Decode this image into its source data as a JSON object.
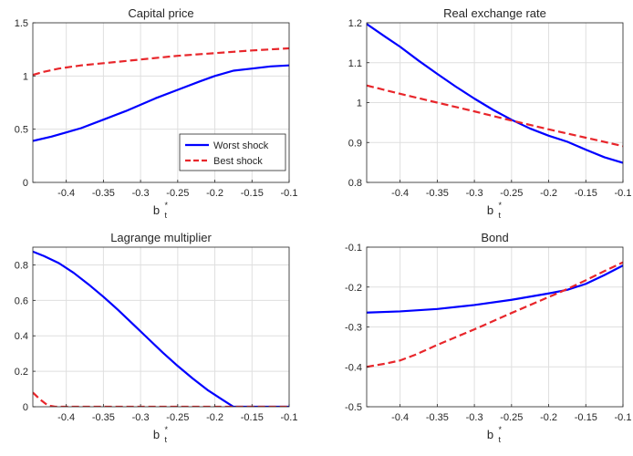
{
  "colors": {
    "worst": "#0000ff",
    "best": "#e8262b",
    "axis": "#262626",
    "grid": "#dfdfdf"
  },
  "legend": {
    "worst_label": "Worst shock",
    "best_label": "Best shock",
    "placement": "bottom-right (Capital price panel)"
  },
  "chart_data": [
    {
      "type": "line",
      "title": "Capital price",
      "xlabel": "b*t",
      "xlabel_base": "b",
      "xlabel_sup": "*",
      "xlabel_sub": "t",
      "xlim": [
        -0.445,
        -0.1
      ],
      "ylim": [
        0,
        1.5
      ],
      "grid": true,
      "xticks": [
        -0.4,
        -0.35,
        -0.3,
        -0.25,
        -0.2,
        -0.15,
        -0.1
      ],
      "xtick_labels": [
        "-0.4",
        "-0.35",
        "-0.3",
        "-0.25",
        "-0.2",
        "-0.15",
        "-0.1"
      ],
      "yticks": [
        0,
        0.5,
        1,
        1.5
      ],
      "ytick_labels": [
        "0",
        "0.5",
        "1",
        "1.5"
      ],
      "series": [
        {
          "name": "Worst shock",
          "style": "solid",
          "x": [
            -0.445,
            -0.42,
            -0.4,
            -0.38,
            -0.35,
            -0.32,
            -0.3,
            -0.28,
            -0.25,
            -0.22,
            -0.2,
            -0.175,
            -0.15,
            -0.125,
            -0.1
          ],
          "y": [
            0.39,
            0.43,
            0.47,
            0.51,
            0.59,
            0.67,
            0.73,
            0.79,
            0.87,
            0.95,
            1.0,
            1.05,
            1.07,
            1.09,
            1.1
          ]
        },
        {
          "name": "Best shock",
          "style": "dashed",
          "x": [
            -0.445,
            -0.43,
            -0.41,
            -0.4,
            -0.38,
            -0.35,
            -0.3,
            -0.25,
            -0.2,
            -0.15,
            -0.1
          ],
          "y": [
            1.01,
            1.04,
            1.07,
            1.08,
            1.1,
            1.12,
            1.155,
            1.19,
            1.215,
            1.24,
            1.26
          ]
        }
      ]
    },
    {
      "type": "line",
      "title": "Real exchange rate",
      "xlabel": "b*t",
      "xlabel_base": "b",
      "xlabel_sup": "*",
      "xlabel_sub": "t",
      "xlim": [
        -0.445,
        -0.1
      ],
      "ylim": [
        0.8,
        1.2
      ],
      "grid": true,
      "xticks": [
        -0.4,
        -0.35,
        -0.3,
        -0.25,
        -0.2,
        -0.15,
        -0.1
      ],
      "xtick_labels": [
        "-0.4",
        "-0.35",
        "-0.3",
        "-0.25",
        "-0.2",
        "-0.15",
        "-0.1"
      ],
      "yticks": [
        0.8,
        0.9,
        1.0,
        1.1,
        1.2
      ],
      "ytick_labels": [
        "0.8",
        "0.9",
        "1",
        "1.1",
        "1.2"
      ],
      "series": [
        {
          "name": "Worst shock",
          "style": "solid",
          "x": [
            -0.445,
            -0.42,
            -0.4,
            -0.375,
            -0.35,
            -0.325,
            -0.3,
            -0.275,
            -0.25,
            -0.225,
            -0.2,
            -0.175,
            -0.15,
            -0.125,
            -0.1
          ],
          "y": [
            1.197,
            1.165,
            1.14,
            1.105,
            1.072,
            1.04,
            1.01,
            0.982,
            0.957,
            0.935,
            0.917,
            0.902,
            0.882,
            0.863,
            0.849
          ]
        },
        {
          "name": "Best shock",
          "style": "dashed",
          "x": [
            -0.445,
            -0.4,
            -0.35,
            -0.3,
            -0.25,
            -0.2,
            -0.15,
            -0.1
          ],
          "y": [
            1.043,
            1.022,
            1.0,
            0.978,
            0.955,
            0.933,
            0.912,
            0.891
          ]
        }
      ]
    },
    {
      "type": "line",
      "title": "Lagrange multiplier",
      "xlabel": "b*t",
      "xlabel_base": "b",
      "xlabel_sup": "*",
      "xlabel_sub": "t",
      "xlim": [
        -0.445,
        -0.1
      ],
      "ylim": [
        0,
        0.9
      ],
      "grid": true,
      "xticks": [
        -0.4,
        -0.35,
        -0.3,
        -0.25,
        -0.2,
        -0.15,
        -0.1
      ],
      "xtick_labels": [
        "-0.4",
        "-0.35",
        "-0.3",
        "-0.25",
        "-0.2",
        "-0.15",
        "-0.1"
      ],
      "yticks": [
        0,
        0.2,
        0.4,
        0.6,
        0.8
      ],
      "ytick_labels": [
        "0",
        "0.2",
        "0.4",
        "0.6",
        "0.8"
      ],
      "series": [
        {
          "name": "Worst shock",
          "style": "solid",
          "x": [
            -0.445,
            -0.43,
            -0.41,
            -0.39,
            -0.37,
            -0.35,
            -0.33,
            -0.31,
            -0.29,
            -0.27,
            -0.25,
            -0.23,
            -0.21,
            -0.19,
            -0.175,
            -0.15,
            -0.125,
            -0.1
          ],
          "y": [
            0.875,
            0.85,
            0.81,
            0.755,
            0.69,
            0.62,
            0.545,
            0.465,
            0.385,
            0.305,
            0.23,
            0.16,
            0.095,
            0.04,
            0.0,
            0.0,
            0.0,
            0.0
          ]
        },
        {
          "name": "Best shock",
          "style": "dashed",
          "x": [
            -0.445,
            -0.435,
            -0.425,
            -0.415,
            -0.4,
            -0.3,
            -0.2,
            -0.1
          ],
          "y": [
            0.08,
            0.04,
            0.008,
            0.0,
            0.0,
            0.0,
            0.0,
            0.0
          ]
        }
      ]
    },
    {
      "type": "line",
      "title": "Bond",
      "xlabel": "b*t",
      "xlabel_base": "b",
      "xlabel_sup": "*",
      "xlabel_sub": "t",
      "xlim": [
        -0.445,
        -0.1
      ],
      "ylim": [
        -0.5,
        -0.1
      ],
      "grid": true,
      "xticks": [
        -0.4,
        -0.35,
        -0.3,
        -0.25,
        -0.2,
        -0.15,
        -0.1
      ],
      "xtick_labels": [
        "-0.4",
        "-0.35",
        "-0.3",
        "-0.25",
        "-0.2",
        "-0.15",
        "-0.1"
      ],
      "yticks": [
        -0.5,
        -0.4,
        -0.3,
        -0.2,
        -0.1
      ],
      "ytick_labels": [
        "-0.5",
        "-0.4",
        "-0.3",
        "-0.2",
        "-0.1"
      ],
      "series": [
        {
          "name": "Worst shock",
          "style": "solid",
          "x": [
            -0.445,
            -0.4,
            -0.35,
            -0.3,
            -0.25,
            -0.2,
            -0.175,
            -0.15,
            -0.125,
            -0.1
          ],
          "y": [
            -0.264,
            -0.261,
            -0.255,
            -0.245,
            -0.232,
            -0.216,
            -0.207,
            -0.192,
            -0.17,
            -0.146
          ]
        },
        {
          "name": "Best shock",
          "style": "dashed",
          "x": [
            -0.445,
            -0.42,
            -0.4,
            -0.38,
            -0.35,
            -0.3,
            -0.25,
            -0.2,
            -0.175,
            -0.15,
            -0.125,
            -0.1
          ],
          "y": [
            -0.4,
            -0.392,
            -0.384,
            -0.37,
            -0.345,
            -0.306,
            -0.265,
            -0.225,
            -0.205,
            -0.183,
            -0.16,
            -0.138
          ]
        }
      ]
    }
  ]
}
